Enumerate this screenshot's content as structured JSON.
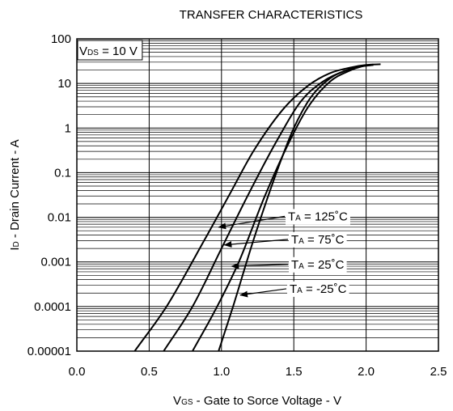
{
  "chart_data": {
    "type": "line",
    "title": "TRANSFER CHARACTERISTICS",
    "xlabel": {
      "main": "V",
      "sub": "GS",
      "rest": " - Gate to Sorce Voltage - V"
    },
    "ylabel": {
      "main": "I",
      "sub": "D",
      "rest": " - Drain Current - A"
    },
    "xlim": [
      0,
      2.5
    ],
    "ylim": [
      1e-05,
      100
    ],
    "yscale": "log",
    "grid": true,
    "xticks": [
      "0.0",
      "0.5",
      "1.0",
      "1.5",
      "2.0",
      "2.5"
    ],
    "yticks": [
      "0.00001",
      "0.0001",
      "0.001",
      "0.01",
      "0.1",
      "1",
      "10",
      "100"
    ],
    "condition": {
      "main": "V",
      "sub": "DS",
      "rest": " = 10 V"
    },
    "series": [
      {
        "name": "125",
        "label": {
          "main": "T",
          "sub": "A",
          "rest": " = 125˚C"
        },
        "x": [
          0.4,
          0.62,
          0.88,
          1.05,
          1.22,
          1.42,
          1.6,
          1.75,
          1.9,
          2.0,
          2.1
        ],
        "y": [
          1e-05,
          0.0001,
          0.003,
          0.03,
          0.3,
          2.5,
          9,
          17,
          23,
          26,
          27
        ]
      },
      {
        "name": "75",
        "label": {
          "main": "T",
          "sub": "A",
          "rest": " = 75˚C"
        },
        "x": [
          0.6,
          0.8,
          1.0,
          1.18,
          1.38,
          1.55,
          1.7,
          1.85,
          1.95,
          2.05
        ],
        "y": [
          1e-05,
          0.0001,
          0.002,
          0.03,
          0.5,
          4,
          11,
          19,
          24,
          26.5
        ]
      },
      {
        "name": "25",
        "label": {
          "main": "T",
          "sub": "A",
          "rest": " =  25˚C"
        },
        "x": [
          0.8,
          0.97,
          1.12,
          1.3,
          1.47,
          1.6,
          1.75,
          1.88,
          1.97,
          2.05
        ],
        "y": [
          1e-05,
          0.0001,
          0.001,
          0.03,
          0.5,
          3,
          11,
          19,
          24,
          26
        ]
      },
      {
        "name": "-25",
        "label": {
          "main": "T",
          "sub": "A",
          "rest": " = -25˚C"
        },
        "x": [
          0.98,
          1.08,
          1.22,
          1.38,
          1.5,
          1.62,
          1.75,
          1.87,
          1.96,
          2.05
        ],
        "y": [
          1e-05,
          0.0001,
          0.003,
          0.1,
          1,
          5,
          13,
          20,
          24,
          26
        ]
      }
    ],
    "annotation_points": [
      {
        "x": 0.98,
        "y": 0.006
      },
      {
        "x": 1.02,
        "y": 0.0024
      },
      {
        "x": 1.07,
        "y": 0.0008
      },
      {
        "x": 1.13,
        "y": 0.00018
      }
    ]
  }
}
